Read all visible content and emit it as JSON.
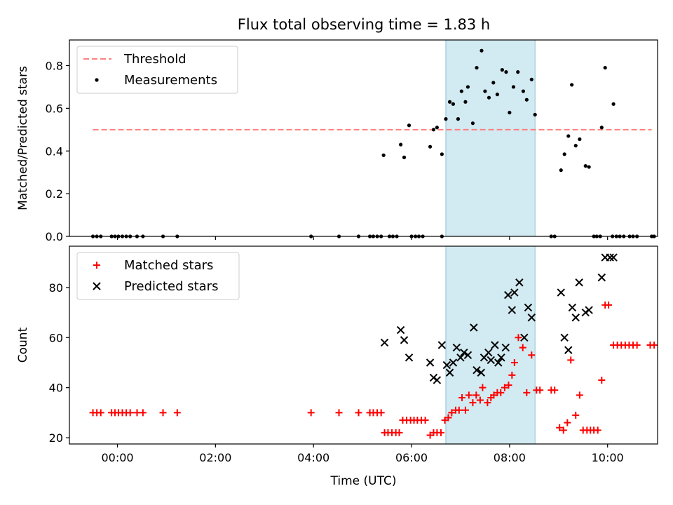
{
  "title": "Flux total observing time = 1.83 h",
  "colors": {
    "measurement": "#000000",
    "threshold": "#ff7f7f",
    "matched": "#ff0000",
    "predicted": "#000000",
    "highlight": "#add8e6"
  },
  "chart_data": [
    {
      "type": "scatter",
      "panel": "top",
      "ylabel": "Matched/Predicted stars",
      "xlabel": "",
      "xlim": [
        -0.98,
        11.02
      ],
      "ylim": [
        0.0,
        0.92
      ],
      "yticks": [
        0.0,
        0.2,
        0.4,
        0.6,
        0.8
      ],
      "ytick_labels": [
        "0.0",
        "0.2",
        "0.4",
        "0.6",
        "0.8"
      ],
      "xticks": [
        0,
        2,
        4,
        6,
        8,
        10
      ],
      "xtick_labels": [
        "",
        "",
        "",
        "",
        "",
        ""
      ],
      "highlight_span": [
        6.7,
        8.52
      ],
      "legend": {
        "placement": "top-left",
        "entries": [
          {
            "label": "Threshold",
            "marker": "dashed-line"
          },
          {
            "label": "Measurements",
            "marker": "dot"
          }
        ]
      },
      "threshold": {
        "name": "Threshold",
        "y": 0.5,
        "x": [
          -0.5,
          10.9
        ]
      },
      "series": [
        {
          "name": "Measurements",
          "points": [
            [
              -0.5,
              0
            ],
            [
              -0.42,
              0
            ],
            [
              -0.34,
              0
            ],
            [
              -0.12,
              0
            ],
            [
              -0.05,
              0
            ],
            [
              0.02,
              0
            ],
            [
              0.1,
              0
            ],
            [
              0.18,
              0
            ],
            [
              0.26,
              0
            ],
            [
              0.4,
              0
            ],
            [
              0.52,
              0
            ],
            [
              0.93,
              0
            ],
            [
              1.22,
              0
            ],
            [
              3.95,
              0
            ],
            [
              4.52,
              0
            ],
            [
              4.92,
              0
            ],
            [
              5.15,
              0
            ],
            [
              5.22,
              0
            ],
            [
              5.3,
              0
            ],
            [
              5.38,
              0
            ],
            [
              5.55,
              0
            ],
            [
              5.62,
              0
            ],
            [
              5.7,
              0
            ],
            [
              6.0,
              0
            ],
            [
              6.08,
              0
            ],
            [
              6.15,
              0
            ],
            [
              6.23,
              0
            ],
            [
              6.62,
              0
            ],
            [
              8.85,
              0
            ],
            [
              8.92,
              0
            ],
            [
              9.72,
              0
            ],
            [
              9.78,
              0
            ],
            [
              9.85,
              0
            ],
            [
              10.1,
              0
            ],
            [
              10.18,
              0
            ],
            [
              10.25,
              0
            ],
            [
              10.33,
              0
            ],
            [
              10.45,
              0
            ],
            [
              10.52,
              0
            ],
            [
              10.6,
              0
            ],
            [
              10.9,
              0
            ],
            [
              10.95,
              0
            ],
            [
              5.43,
              0.38
            ],
            [
              5.78,
              0.43
            ],
            [
              5.85,
              0.37
            ],
            [
              5.95,
              0.52
            ],
            [
              6.38,
              0.42
            ],
            [
              6.45,
              0.5
            ],
            [
              6.52,
              0.51
            ],
            [
              6.62,
              0.385
            ],
            [
              6.7,
              0.55
            ],
            [
              6.78,
              0.63
            ],
            [
              6.85,
              0.62
            ],
            [
              6.95,
              0.55
            ],
            [
              7.02,
              0.68
            ],
            [
              7.1,
              0.63
            ],
            [
              7.15,
              0.7
            ],
            [
              7.25,
              0.53
            ],
            [
              7.33,
              0.79
            ],
            [
              7.43,
              0.87
            ],
            [
              7.5,
              0.68
            ],
            [
              7.58,
              0.65
            ],
            [
              7.67,
              0.72
            ],
            [
              7.75,
              0.665
            ],
            [
              7.85,
              0.78
            ],
            [
              7.93,
              0.77
            ],
            [
              8.0,
              0.58
            ],
            [
              8.08,
              0.7
            ],
            [
              8.17,
              0.77
            ],
            [
              8.28,
              0.68
            ],
            [
              8.35,
              0.64
            ],
            [
              8.45,
              0.735
            ],
            [
              8.52,
              0.57
            ],
            [
              9.05,
              0.31
            ],
            [
              9.12,
              0.385
            ],
            [
              9.2,
              0.47
            ],
            [
              9.27,
              0.71
            ],
            [
              9.35,
              0.425
            ],
            [
              9.43,
              0.455
            ],
            [
              9.55,
              0.33
            ],
            [
              9.62,
              0.325
            ],
            [
              9.88,
              0.51
            ],
            [
              9.95,
              0.79
            ],
            [
              10.12,
              0.62
            ]
          ]
        }
      ]
    },
    {
      "type": "scatter",
      "panel": "bottom",
      "ylabel": "Count",
      "xlabel": "Time (UTC)",
      "xlim": [
        -0.98,
        11.02
      ],
      "ylim": [
        17.5,
        96.5
      ],
      "yticks": [
        20,
        40,
        60,
        80
      ],
      "ytick_labels": [
        "20",
        "40",
        "60",
        "80"
      ],
      "xticks": [
        0,
        2,
        4,
        6,
        8,
        10
      ],
      "xtick_labels": [
        "00:00",
        "02:00",
        "04:00",
        "06:00",
        "08:00",
        "10:00"
      ],
      "highlight_span": [
        6.7,
        8.52
      ],
      "legend": {
        "placement": "top-left",
        "entries": [
          {
            "label": "Matched stars",
            "marker": "plus"
          },
          {
            "label": "Predicted stars",
            "marker": "x"
          }
        ]
      },
      "series": [
        {
          "name": "Matched stars",
          "marker": "plus",
          "points": [
            [
              -0.5,
              30
            ],
            [
              -0.42,
              30
            ],
            [
              -0.34,
              30
            ],
            [
              -0.12,
              30
            ],
            [
              -0.05,
              30
            ],
            [
              0.02,
              30
            ],
            [
              0.1,
              30
            ],
            [
              0.18,
              30
            ],
            [
              0.26,
              30
            ],
            [
              0.4,
              30
            ],
            [
              0.52,
              30
            ],
            [
              0.93,
              30
            ],
            [
              1.22,
              30
            ],
            [
              3.95,
              30
            ],
            [
              4.52,
              30
            ],
            [
              4.92,
              30
            ],
            [
              5.15,
              30
            ],
            [
              5.22,
              30
            ],
            [
              5.3,
              30
            ],
            [
              5.38,
              30
            ],
            [
              5.45,
              22
            ],
            [
              5.52,
              22
            ],
            [
              5.6,
              22
            ],
            [
              5.68,
              22
            ],
            [
              5.75,
              22
            ],
            [
              5.82,
              27
            ],
            [
              5.9,
              27
            ],
            [
              5.98,
              27
            ],
            [
              6.05,
              27
            ],
            [
              6.12,
              27
            ],
            [
              6.2,
              27
            ],
            [
              6.28,
              27
            ],
            [
              6.38,
              21
            ],
            [
              6.45,
              22
            ],
            [
              6.52,
              22
            ],
            [
              6.6,
              22
            ],
            [
              6.68,
              27
            ],
            [
              6.75,
              28
            ],
            [
              6.82,
              30
            ],
            [
              6.9,
              31
            ],
            [
              6.97,
              31
            ],
            [
              7.03,
              36
            ],
            [
              7.1,
              31
            ],
            [
              7.17,
              37
            ],
            [
              7.25,
              34
            ],
            [
              7.32,
              37
            ],
            [
              7.4,
              35
            ],
            [
              7.45,
              40
            ],
            [
              7.55,
              34
            ],
            [
              7.62,
              36
            ],
            [
              7.68,
              37
            ],
            [
              7.75,
              38
            ],
            [
              7.82,
              38
            ],
            [
              7.9,
              40
            ],
            [
              7.98,
              41
            ],
            [
              8.05,
              45
            ],
            [
              8.1,
              50
            ],
            [
              8.18,
              60
            ],
            [
              8.27,
              56
            ],
            [
              8.35,
              38
            ],
            [
              8.45,
              53
            ],
            [
              8.55,
              39
            ],
            [
              8.62,
              39
            ],
            [
              8.85,
              39
            ],
            [
              8.92,
              39
            ],
            [
              9.02,
              24
            ],
            [
              9.1,
              23
            ],
            [
              9.18,
              26
            ],
            [
              9.25,
              51
            ],
            [
              9.35,
              29
            ],
            [
              9.43,
              37
            ],
            [
              9.5,
              23
            ],
            [
              9.58,
              23
            ],
            [
              9.65,
              23
            ],
            [
              9.72,
              23
            ],
            [
              9.8,
              23
            ],
            [
              9.88,
              43
            ],
            [
              9.95,
              73
            ],
            [
              10.02,
              73
            ],
            [
              10.12,
              57
            ],
            [
              10.2,
              57
            ],
            [
              10.28,
              57
            ],
            [
              10.36,
              57
            ],
            [
              10.44,
              57
            ],
            [
              10.52,
              57
            ],
            [
              10.6,
              57
            ],
            [
              10.87,
              57
            ],
            [
              10.95,
              57
            ]
          ]
        },
        {
          "name": "Predicted stars",
          "marker": "x",
          "points": [
            [
              5.45,
              58
            ],
            [
              5.78,
              63
            ],
            [
              5.85,
              59
            ],
            [
              5.95,
              52
            ],
            [
              6.38,
              50
            ],
            [
              6.45,
              44
            ],
            [
              6.52,
              43
            ],
            [
              6.62,
              57
            ],
            [
              6.72,
              49
            ],
            [
              6.78,
              46
            ],
            [
              6.85,
              50
            ],
            [
              6.92,
              56
            ],
            [
              7.0,
              52
            ],
            [
              7.07,
              54
            ],
            [
              7.15,
              53
            ],
            [
              7.27,
              64
            ],
            [
              7.33,
              47
            ],
            [
              7.42,
              46
            ],
            [
              7.48,
              52
            ],
            [
              7.57,
              54
            ],
            [
              7.62,
              51
            ],
            [
              7.7,
              57
            ],
            [
              7.77,
              50
            ],
            [
              7.83,
              52
            ],
            [
              7.92,
              56
            ],
            [
              7.97,
              77
            ],
            [
              8.05,
              71
            ],
            [
              8.1,
              78
            ],
            [
              8.2,
              82
            ],
            [
              8.3,
              60
            ],
            [
              8.38,
              72
            ],
            [
              8.45,
              68
            ],
            [
              9.05,
              78
            ],
            [
              9.12,
              60
            ],
            [
              9.2,
              55
            ],
            [
              9.28,
              72
            ],
            [
              9.35,
              68
            ],
            [
              9.42,
              82
            ],
            [
              9.55,
              70
            ],
            [
              9.62,
              71
            ],
            [
              9.88,
              84
            ],
            [
              9.95,
              92
            ],
            [
              10.05,
              92
            ],
            [
              10.12,
              92
            ]
          ]
        }
      ]
    }
  ]
}
